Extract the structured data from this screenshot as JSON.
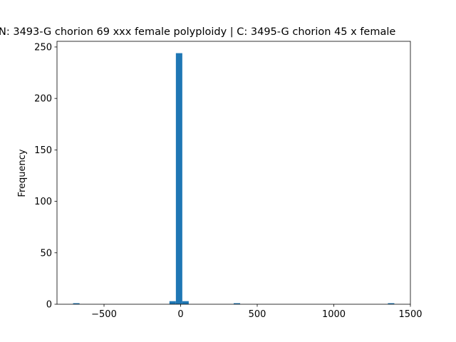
{
  "chart_data": {
    "type": "histogram",
    "title": "N: 3493-G chorion 69 xxx female polyploidy | C: 3495-G chorion 45 x female",
    "ylabel": "Frequency",
    "color": "#1f77b4",
    "bins": [
      -702,
      -660.06,
      -618.12,
      -576.18,
      -534.24,
      -492.3,
      -450.36,
      -408.42,
      -366.48,
      -324.54,
      -282.6,
      -240.66,
      -198.72,
      -156.78,
      -114.84,
      -72.9,
      -30.96,
      10.98,
      52.92,
      94.86,
      136.8,
      178.74,
      220.68,
      262.62,
      304.56,
      346.5,
      388.44,
      430.38,
      472.32,
      514.26,
      556.2,
      598.14,
      640.08,
      682.02,
      723.96,
      765.9,
      807.84,
      849.78,
      891.72,
      933.66,
      975.6,
      1017.54,
      1059.48,
      1101.42,
      1143.36,
      1185.3,
      1227.24,
      1269.18,
      1311.12,
      1353.06,
      1395
    ],
    "values": [
      1,
      0,
      0,
      0,
      0,
      0,
      0,
      0,
      0,
      0,
      0,
      0,
      0,
      0,
      0,
      3,
      244,
      3,
      0,
      0,
      0,
      0,
      0,
      0,
      0,
      1,
      0,
      0,
      0,
      0,
      0,
      0,
      0,
      0,
      0,
      0,
      0,
      0,
      0,
      0,
      0,
      0,
      0,
      0,
      0,
      0,
      0,
      0,
      0,
      1
    ],
    "xlim": [
      -807,
      1500
    ],
    "ylim": [
      0,
      255.5
    ],
    "xticks": [
      {
        "value": -500,
        "label": "−500"
      },
      0,
      500,
      1000,
      1500
    ],
    "yticks": [
      0,
      50,
      100,
      150,
      200,
      250
    ],
    "grid": false
  }
}
